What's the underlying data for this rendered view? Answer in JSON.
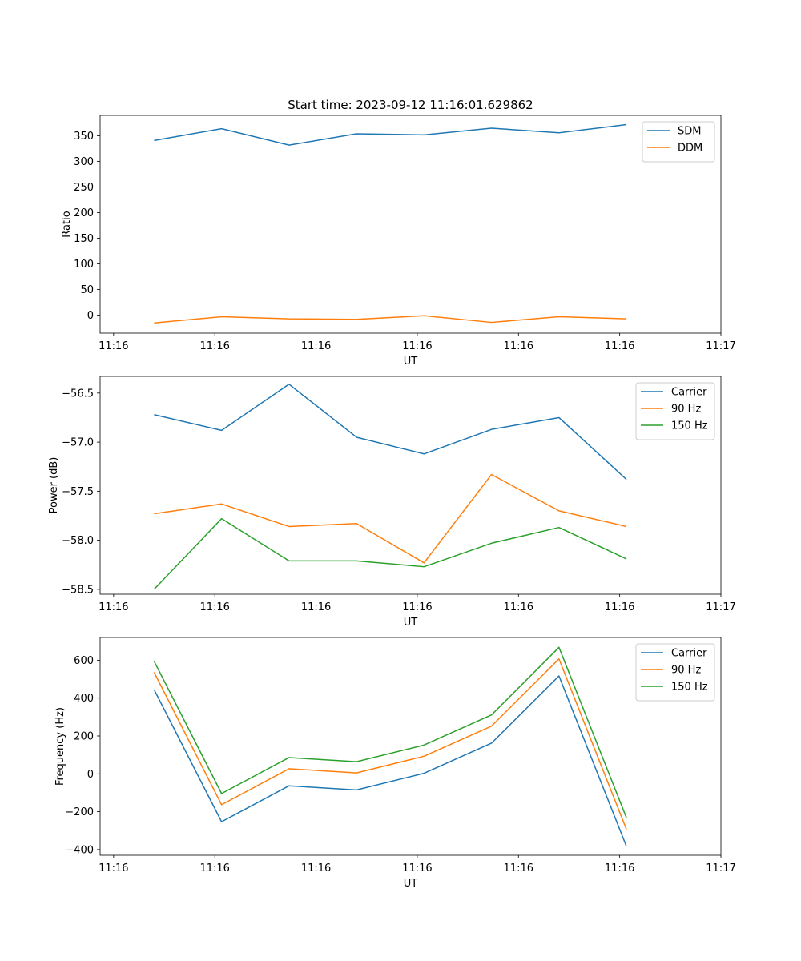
{
  "chart_data": [
    {
      "type": "line",
      "title": "Start time: 2023-09-12 11:16:01.629862",
      "xlabel": "UT",
      "ylabel": "Ratio",
      "x": [
        1,
        2,
        3,
        4,
        5,
        6,
        7,
        8
      ],
      "xlim": [
        0.2,
        9.4
      ],
      "xticks": [
        0.4,
        1.9,
        3.4,
        4.9,
        6.4,
        7.9,
        9.4
      ],
      "xtick_labels": [
        "11:16",
        "11:16",
        "11:16",
        "11:16",
        "11:16",
        "11:16",
        "11:17"
      ],
      "ylim": [
        -35,
        390
      ],
      "yticks": [
        0,
        50,
        100,
        150,
        200,
        250,
        300,
        350
      ],
      "ytick_labels": [
        "0",
        "50",
        "100",
        "150",
        "200",
        "250",
        "300",
        "350"
      ],
      "legend_position": "top-right",
      "series": [
        {
          "name": "SDM",
          "color": "#1f77b4",
          "values": [
            341,
            364,
            332,
            354,
            352,
            365,
            356,
            372
          ]
        },
        {
          "name": "DDM",
          "color": "#ff7f0e",
          "values": [
            -15,
            -3,
            -7,
            -8,
            -1,
            -14,
            -3,
            -7
          ]
        }
      ]
    },
    {
      "type": "line",
      "title": "",
      "xlabel": "UT",
      "ylabel": "Power (dB)",
      "x": [
        1,
        2,
        3,
        4,
        5,
        6,
        7,
        8
      ],
      "xlim": [
        0.2,
        9.4
      ],
      "xticks": [
        0.4,
        1.9,
        3.4,
        4.9,
        6.4,
        7.9,
        9.4
      ],
      "xtick_labels": [
        "11:16",
        "11:16",
        "11:16",
        "11:16",
        "11:16",
        "11:16",
        "11:17"
      ],
      "ylim": [
        -58.55,
        -56.33
      ],
      "yticks": [
        -58.5,
        -58.0,
        -57.5,
        -57.0,
        -56.5
      ],
      "ytick_labels": [
        "−58.5",
        "−58.0",
        "−57.5",
        "−57.0",
        "−56.5"
      ],
      "legend_position": "top-right",
      "series": [
        {
          "name": "Carrier",
          "color": "#1f77b4",
          "values": [
            -56.72,
            -56.88,
            -56.41,
            -56.95,
            -57.12,
            -56.87,
            -56.75,
            -57.38
          ]
        },
        {
          "name": "90 Hz",
          "color": "#ff7f0e",
          "values": [
            -57.73,
            -57.63,
            -57.86,
            -57.83,
            -58.23,
            -57.33,
            -57.7,
            -57.86
          ]
        },
        {
          "name": "150 Hz",
          "color": "#2ca02c",
          "values": [
            -58.5,
            -57.78,
            -58.21,
            -58.21,
            -58.27,
            -58.03,
            -57.87,
            -58.19
          ]
        }
      ]
    },
    {
      "type": "line",
      "title": "",
      "xlabel": "UT",
      "ylabel": "Frequency (Hz)",
      "x": [
        1,
        2,
        3,
        4,
        5,
        6,
        7,
        8
      ],
      "xlim": [
        0.2,
        9.4
      ],
      "xticks": [
        0.4,
        1.9,
        3.4,
        4.9,
        6.4,
        7.9,
        9.4
      ],
      "xtick_labels": [
        "11:16",
        "11:16",
        "11:16",
        "11:16",
        "11:16",
        "11:16",
        "11:17"
      ],
      "ylim": [
        -430,
        720
      ],
      "yticks": [
        -400,
        -200,
        0,
        200,
        400,
        600
      ],
      "ytick_labels": [
        "−400",
        "−200",
        "0",
        "200",
        "400",
        "600"
      ],
      "legend_position": "top-right",
      "series": [
        {
          "name": "Carrier",
          "color": "#1f77b4",
          "values": [
            445,
            -253,
            -63,
            -85,
            3,
            162,
            517,
            -383
          ]
        },
        {
          "name": "90 Hz",
          "color": "#ff7f0e",
          "values": [
            536,
            -163,
            27,
            5,
            93,
            252,
            607,
            -293
          ]
        },
        {
          "name": "150 Hz",
          "color": "#2ca02c",
          "values": [
            595,
            -104,
            86,
            64,
            152,
            311,
            668,
            -232
          ]
        }
      ]
    }
  ]
}
